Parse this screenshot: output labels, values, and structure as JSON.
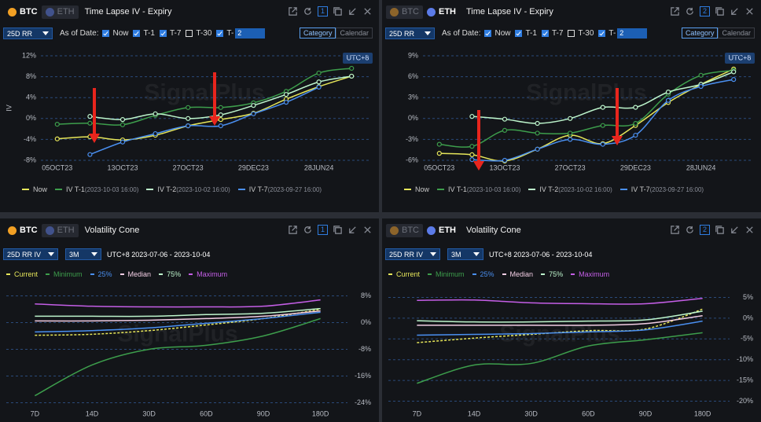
{
  "panels": [
    {
      "coins": [
        "BTC",
        "ETH"
      ],
      "active": 0,
      "title": "Time Lapse IV - Expiry",
      "window": "1",
      "watermark": "SignalPlus",
      "timezone": "UTC+8",
      "controls": {
        "dropdown": "25D RR",
        "as_of": "As of Date:",
        "checks": [
          {
            "label": "Now",
            "checked": true
          },
          {
            "label": "T-1",
            "checked": true
          },
          {
            "label": "T-7",
            "checked": true
          },
          {
            "label": "T-30",
            "checked": false
          },
          {
            "label": "T-",
            "checked": true
          }
        ],
        "input": "2",
        "toggle": [
          "Category",
          "Calendar"
        ]
      }
    },
    {
      "coins": [
        "BTC",
        "ETH"
      ],
      "active": 1,
      "title": "Time Lapse IV - Expiry",
      "window": "2",
      "watermark": "SignalPlus",
      "timezone": "UTC+8",
      "controls": {
        "dropdown": "25D RR",
        "as_of": "As of Date:",
        "checks": [
          {
            "label": "Now",
            "checked": true
          },
          {
            "label": "T-1",
            "checked": true
          },
          {
            "label": "T-7",
            "checked": true
          },
          {
            "label": "T-30",
            "checked": false
          },
          {
            "label": "T-",
            "checked": true
          }
        ],
        "input": "2",
        "toggle": [
          "Category",
          "Calendar"
        ]
      }
    },
    {
      "coins": [
        "BTC",
        "ETH"
      ],
      "active": 0,
      "title": "Volatility Cone",
      "window": "1",
      "watermark": "SignalPlus",
      "controls": {
        "dropdowns": [
          "25D RR IV",
          "3M"
        ],
        "range": "UTC+8 2023-07-06 - 2023-10-04"
      }
    },
    {
      "coins": [
        "BTC",
        "ETH"
      ],
      "active": 1,
      "title": "Volatility Cone",
      "window": "2",
      "watermark": "SignalPlus",
      "controls": {
        "dropdowns": [
          "25D RR IV",
          "3M"
        ],
        "range": "UTC+8 2023-07-06 - 2023-10-04"
      }
    }
  ],
  "chart_data": [
    {
      "type": "line",
      "y_label": "IV",
      "markers": true,
      "grid": true,
      "categories": [
        "05OCT23",
        null,
        "13OCT23",
        null,
        "27OCT23",
        null,
        "29DEC23",
        null,
        "28JUN24",
        null
      ],
      "ylim": [
        -8,
        12
      ],
      "yticks": [
        {
          "value": 12,
          "label": "12%"
        },
        {
          "value": 8,
          "label": "8%"
        },
        {
          "value": 4,
          "label": "4%"
        },
        {
          "value": 0,
          "label": "0%"
        },
        {
          "value": -4,
          "label": "-4%"
        },
        {
          "value": -8,
          "label": "-8%"
        }
      ],
      "series": [
        {
          "name": "Now",
          "color": "#e6e65a",
          "values": [
            -3.9,
            -3.5,
            -4.1,
            -3.2,
            -1.4,
            -0.2,
            1.0,
            3.7,
            6.1,
            8.1
          ]
        },
        {
          "name": "IV T-1",
          "date": "(2023-10-03 16:00)",
          "color": "#3d9e4c",
          "values": [
            -1.1,
            -0.9,
            -1.2,
            0.6,
            2.1,
            2.1,
            3.0,
            5.2,
            8.7,
            9.6
          ]
        },
        {
          "name": "IV T-2",
          "date": "(2023-10-02 16:00)",
          "color": "#bdf5cc",
          "values": [
            null,
            0.4,
            -0.2,
            0.9,
            0.0,
            0.7,
            2.5,
            4.6,
            7.0,
            8.1
          ]
        },
        {
          "name": "IV T-7",
          "date": "(2023-09-27 16:00)",
          "color": "#4a8ff0",
          "values": [
            null,
            -6.9,
            -4.5,
            -2.9,
            -1.4,
            -1.4,
            0.9,
            3.1,
            6.0,
            null
          ]
        }
      ]
    },
    {
      "type": "line",
      "markers": true,
      "grid": true,
      "categories": [
        "05OCT23",
        null,
        "13OCT23",
        null,
        "27OCT23",
        null,
        "29DEC23",
        null,
        "28JUN24",
        null
      ],
      "ylim": [
        -6,
        9
      ],
      "yticks": [
        {
          "value": 9,
          "label": "9%"
        },
        {
          "value": 6,
          "label": "6%"
        },
        {
          "value": 3,
          "label": "3%"
        },
        {
          "value": 0,
          "label": "0%"
        },
        {
          "value": -3,
          "label": "-3%"
        },
        {
          "value": -6,
          "label": "-6%"
        }
      ],
      "series": [
        {
          "name": "Now",
          "color": "#e6e65a",
          "values": [
            -5.0,
            -5.2,
            -6.1,
            -4.4,
            -2.4,
            -3.6,
            -1.0,
            2.3,
            4.9,
            7.1
          ]
        },
        {
          "name": "IV T-1",
          "date": "(2023-10-03 16:00)",
          "color": "#3d9e4c",
          "values": [
            -3.7,
            -4.0,
            -1.7,
            -2.1,
            -2.1,
            -1.0,
            -0.7,
            3.5,
            6.2,
            6.9
          ]
        },
        {
          "name": "IV T-2",
          "date": "(2023-10-02 16:00)",
          "color": "#bdf5cc",
          "values": [
            null,
            0.3,
            -0.1,
            -0.7,
            0.0,
            1.6,
            1.6,
            3.8,
            4.9,
            6.7
          ]
        },
        {
          "name": "IV T-7",
          "date": "(2023-09-27 16:00)",
          "color": "#4a8ff0",
          "values": [
            null,
            -5.9,
            -6.0,
            -4.4,
            -3.0,
            -3.7,
            -2.4,
            2.6,
            4.6,
            5.6
          ]
        }
      ]
    },
    {
      "type": "line",
      "markers": false,
      "grid": true,
      "categories": [
        "7D",
        "14D",
        "30D",
        "60D",
        "90D",
        "180D"
      ],
      "ylim": [
        -26,
        10
      ],
      "yticks": [
        {
          "value": 8,
          "label": "8%"
        },
        {
          "value": 0,
          "label": "0%"
        },
        {
          "value": -8,
          "label": "-8%"
        },
        {
          "value": -16,
          "label": "-16%"
        },
        {
          "value": -24,
          "label": "-24%"
        }
      ],
      "series": [
        {
          "name": "Current",
          "color": "#e6e65a",
          "dashed": true,
          "values": [
            -3.8,
            -3.5,
            -2.4,
            -0.7,
            1.2,
            4.0
          ]
        },
        {
          "name": "Minimum",
          "color": "#3d9e4c",
          "values": [
            -21.9,
            -12.7,
            -8.0,
            -6.8,
            -4.0,
            1.2
          ]
        },
        {
          "name": "25%",
          "color": "#4a8ff0",
          "values": [
            -2.8,
            -2.4,
            -1.6,
            -0.2,
            1.2,
            3.1
          ]
        },
        {
          "name": "Median",
          "color": "#f2cde4",
          "values": [
            0.5,
            0.5,
            0.7,
            1.2,
            1.9,
            3.5
          ]
        },
        {
          "name": "75%",
          "color": "#bdf5cc",
          "values": [
            1.9,
            1.9,
            1.9,
            2.4,
            2.8,
            4.2
          ]
        },
        {
          "name": "Maximum",
          "color": "#c45ee6",
          "values": [
            5.6,
            4.9,
            4.7,
            4.7,
            4.9,
            6.8
          ]
        }
      ]
    },
    {
      "type": "line",
      "markers": false,
      "grid": true,
      "categories": [
        "7D",
        "14D",
        "30D",
        "60D",
        "90D",
        "180D"
      ],
      "ylim": [
        -22,
        7
      ],
      "yticks": [
        {
          "value": 5,
          "label": "5%"
        },
        {
          "value": 0,
          "label": "0%"
        },
        {
          "value": -5,
          "label": "-5%"
        },
        {
          "value": -10,
          "label": "-10%"
        },
        {
          "value": -15,
          "label": "-15%"
        },
        {
          "value": -20,
          "label": "-20%"
        }
      ],
      "series": [
        {
          "name": "Current",
          "color": "#e6e65a",
          "dashed": true,
          "values": [
            -5.9,
            -4.8,
            -3.9,
            -3.0,
            -2.6,
            2.2
          ]
        },
        {
          "name": "Minimum",
          "color": "#3d9e4c",
          "values": [
            -15.7,
            -11.3,
            -10.9,
            -6.7,
            -5.2,
            -3.5
          ]
        },
        {
          "name": "25%",
          "color": "#4a8ff0",
          "values": [
            -4.1,
            -3.9,
            -3.7,
            -3.3,
            -2.8,
            -0.7
          ]
        },
        {
          "name": "Median",
          "color": "#f2cde4",
          "values": [
            -1.7,
            -1.7,
            -1.7,
            -1.7,
            -1.3,
            0.6
          ]
        },
        {
          "name": "75%",
          "color": "#bdf5cc",
          "values": [
            -0.6,
            -0.9,
            -0.9,
            -0.7,
            -0.4,
            1.7
          ]
        },
        {
          "name": "Maximum",
          "color": "#c45ee6",
          "values": [
            4.3,
            4.4,
            3.7,
            3.5,
            3.5,
            4.8
          ]
        }
      ]
    }
  ]
}
